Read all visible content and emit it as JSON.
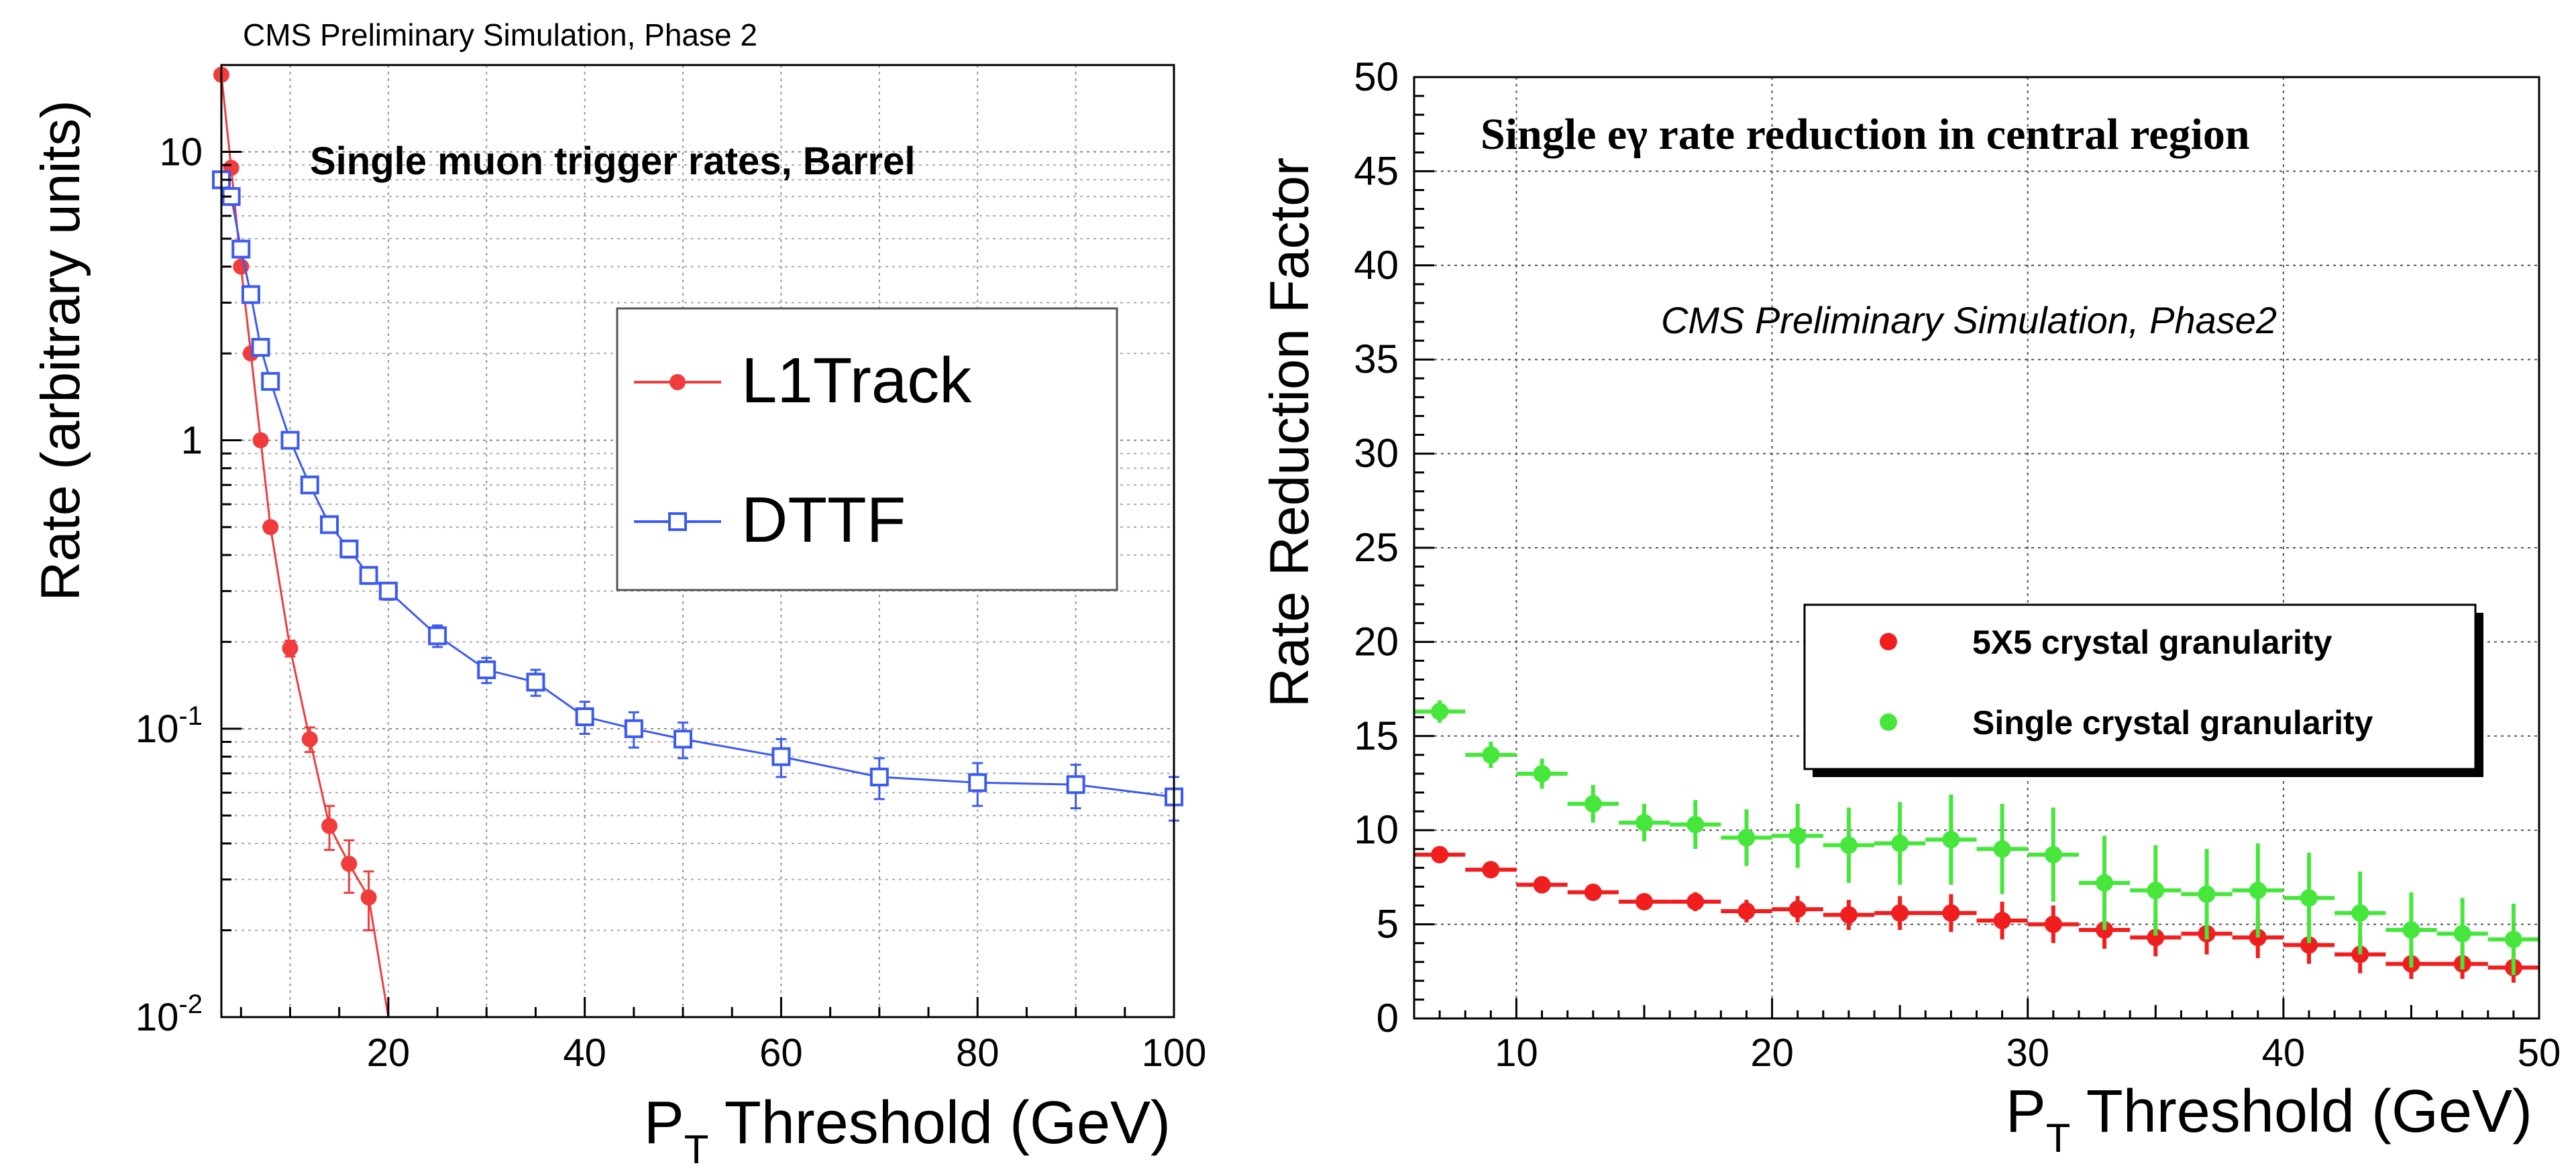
{
  "chart_data": [
    {
      "type": "line",
      "title": "Single muon trigger rates, Barrel",
      "annotation": "CMS Preliminary Simulation, Phase 2",
      "xlabel_main": "P",
      "xlabel_sub": "T",
      "xlabel_rest": " Threshold (GeV)",
      "ylabel": "Rate (arbitrary units)",
      "xlim": [
        3,
        100
      ],
      "ylim": [
        0.01,
        20
      ],
      "yscale": "log",
      "grid": true,
      "legend_position": "top-right",
      "x_ticks": [
        20,
        40,
        60,
        80,
        100
      ],
      "y_ticks": [
        {
          "value": 10,
          "label": "10"
        },
        {
          "value": 1,
          "label": "1"
        },
        {
          "value": 0.1,
          "base": "10",
          "exp": "-1"
        },
        {
          "value": 0.01,
          "base": "10",
          "exp": "-2"
        }
      ],
      "series": [
        {
          "name": "L1Track",
          "color": "#f03c3c",
          "marker": "filled-circle",
          "x": [
            3,
            4,
            5,
            6,
            7,
            8,
            10,
            12,
            14,
            16,
            18,
            20
          ],
          "y": [
            18.5,
            8.8,
            4.0,
            2.0,
            1.0,
            0.5,
            0.19,
            0.092,
            0.046,
            0.034,
            0.026,
            0.0098
          ],
          "err": [
            0,
            0,
            0,
            0,
            0,
            0,
            0.012,
            0.009,
            0.008,
            0.007,
            0.006,
            0
          ]
        },
        {
          "name": "DTTF",
          "color": "#3c5af0",
          "marker": "open-square",
          "x": [
            3,
            4,
            5,
            6,
            7,
            8,
            10,
            12,
            14,
            16,
            18,
            20,
            25,
            30,
            35,
            40,
            45,
            50,
            60,
            70,
            80,
            90,
            100
          ],
          "y": [
            8.0,
            7.0,
            4.6,
            3.2,
            2.1,
            1.6,
            1.0,
            0.7,
            0.51,
            0.42,
            0.34,
            0.3,
            0.21,
            0.16,
            0.145,
            0.11,
            0.1,
            0.092,
            0.08,
            0.068,
            0.065,
            0.064,
            0.058
          ],
          "err": [
            0.3,
            0.3,
            0.2,
            0.15,
            0.1,
            0.08,
            0.05,
            0.035,
            0.03,
            0.028,
            0.022,
            0.02,
            0.018,
            0.016,
            0.015,
            0.014,
            0.014,
            0.013,
            0.012,
            0.011,
            0.011,
            0.011,
            0.01
          ]
        }
      ]
    },
    {
      "type": "scatter",
      "title": "Single eγ rate reduction in central region",
      "annotation": "CMS Preliminary Simulation, Phase2",
      "xlabel_main": "P",
      "xlabel_sub": "T",
      "xlabel_rest": " Threshold (GeV)",
      "ylabel": "Rate Reduction Factor",
      "xlim": [
        6,
        50
      ],
      "ylim": [
        0,
        50
      ],
      "yscale": "linear",
      "grid": true,
      "legend_position": "middle-right",
      "x_ticks": [
        10,
        20,
        30,
        40,
        50
      ],
      "y_ticks": [
        0,
        5,
        10,
        15,
        20,
        25,
        30,
        35,
        40,
        45,
        50
      ],
      "series": [
        {
          "name": "5X5 crystal granularity",
          "color": "#f01e1e",
          "marker": "filled-circle",
          "x": [
            7,
            9,
            11,
            13,
            15,
            17,
            19,
            21,
            23,
            25,
            27,
            29,
            31,
            33,
            35,
            37,
            39,
            41,
            43,
            45,
            47,
            49
          ],
          "y": [
            8.7,
            7.9,
            7.1,
            6.7,
            6.2,
            6.2,
            5.7,
            5.8,
            5.5,
            5.6,
            5.6,
            5.2,
            5.0,
            4.7,
            4.3,
            4.5,
            4.3,
            3.9,
            3.4,
            2.9,
            2.9,
            2.7
          ],
          "err": [
            0.4,
            0.4,
            0.4,
            0.4,
            0.4,
            0.5,
            0.6,
            0.7,
            0.8,
            0.9,
            1.0,
            1.0,
            1.0,
            1.0,
            1.0,
            1.1,
            1.1,
            1.0,
            1.0,
            0.8,
            0.8,
            0.8
          ]
        },
        {
          "name": "Single crystal granularity",
          "color": "#46e63c",
          "marker": "filled-circle",
          "x": [
            7,
            9,
            11,
            13,
            15,
            17,
            19,
            21,
            23,
            25,
            27,
            29,
            31,
            33,
            35,
            37,
            39,
            41,
            43,
            45,
            47,
            49
          ],
          "y": [
            16.3,
            14.0,
            13.0,
            11.4,
            10.4,
            10.3,
            9.6,
            9.7,
            9.2,
            9.3,
            9.5,
            9.0,
            8.7,
            7.2,
            6.8,
            6.6,
            6.8,
            6.4,
            5.6,
            4.7,
            4.5,
            4.2
          ],
          "err": [
            0.6,
            0.7,
            0.8,
            1.0,
            1.0,
            1.3,
            1.5,
            1.7,
            2.0,
            2.2,
            2.4,
            2.4,
            2.5,
            2.5,
            2.4,
            2.4,
            2.5,
            2.4,
            2.2,
            2.0,
            1.9,
            1.9
          ]
        }
      ]
    }
  ]
}
